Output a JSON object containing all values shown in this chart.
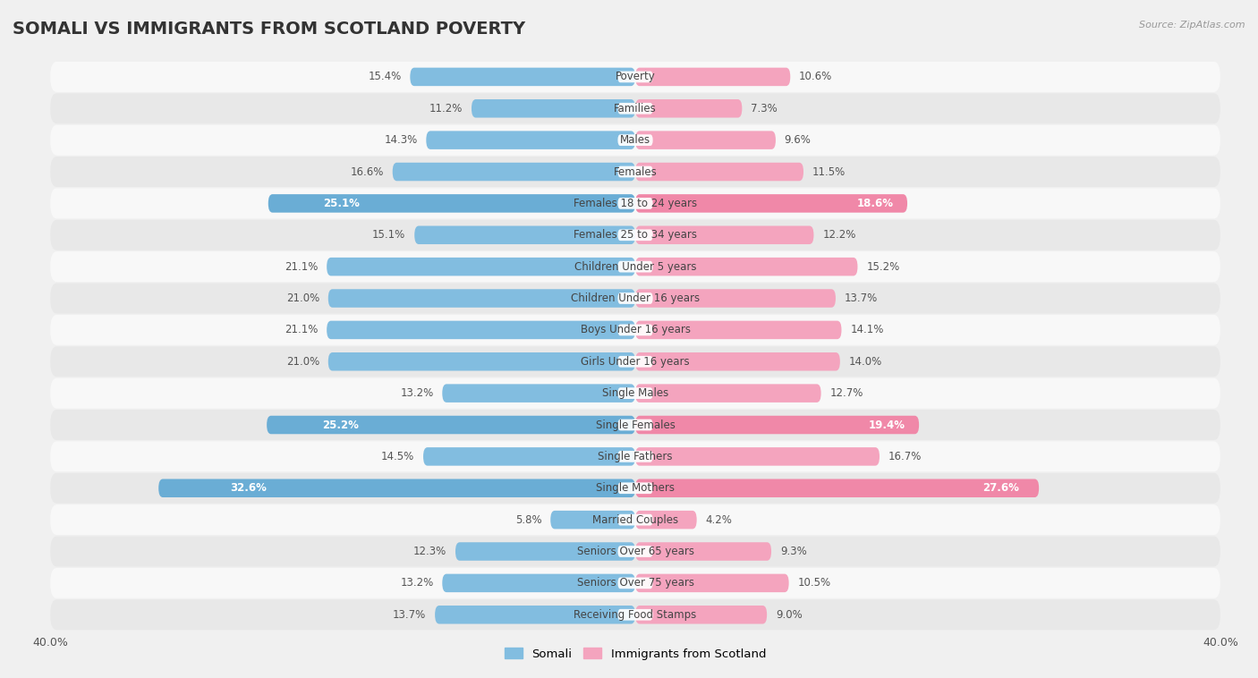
{
  "title": "SOMALI VS IMMIGRANTS FROM SCOTLAND POVERTY",
  "source": "Source: ZipAtlas.com",
  "categories": [
    "Poverty",
    "Families",
    "Males",
    "Females",
    "Females 18 to 24 years",
    "Females 25 to 34 years",
    "Children Under 5 years",
    "Children Under 16 years",
    "Boys Under 16 years",
    "Girls Under 16 years",
    "Single Males",
    "Single Females",
    "Single Fathers",
    "Single Mothers",
    "Married Couples",
    "Seniors Over 65 years",
    "Seniors Over 75 years",
    "Receiving Food Stamps"
  ],
  "somali_values": [
    15.4,
    11.2,
    14.3,
    16.6,
    25.1,
    15.1,
    21.1,
    21.0,
    21.1,
    21.0,
    13.2,
    25.2,
    14.5,
    32.6,
    5.8,
    12.3,
    13.2,
    13.7
  ],
  "scotland_values": [
    10.6,
    7.3,
    9.6,
    11.5,
    18.6,
    12.2,
    15.2,
    13.7,
    14.1,
    14.0,
    12.7,
    19.4,
    16.7,
    27.6,
    4.2,
    9.3,
    10.5,
    9.0
  ],
  "somali_color": "#82bde0",
  "scotland_color": "#f4a4be",
  "highlight_somali_color": "#6aadd5",
  "highlight_scotland_color": "#f088a8",
  "highlight_rows": [
    4,
    11,
    13
  ],
  "xlim": 40.0,
  "bar_height": 0.58,
  "bg_color": "#f0f0f0",
  "row_bg_light": "#f8f8f8",
  "row_bg_dark": "#e8e8e8",
  "label_fontsize": 8.5,
  "value_fontsize": 8.5,
  "title_fontsize": 14,
  "legend_labels": [
    "Somali",
    "Immigrants from Scotland"
  ],
  "x_tick_label": "40.0%"
}
